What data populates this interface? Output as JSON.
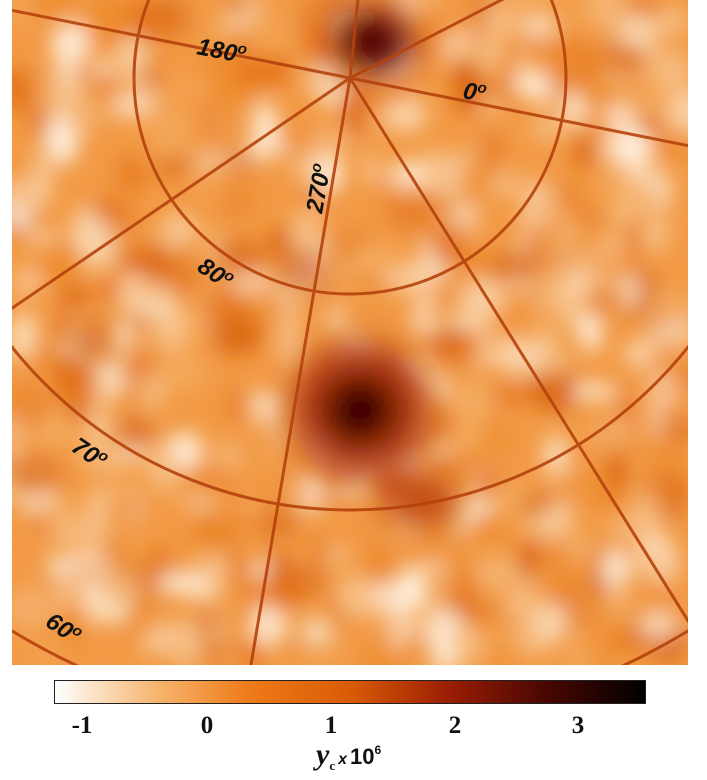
{
  "map": {
    "longitude_labels": [
      "180o",
      "0o",
      "270o"
    ],
    "latitude_labels": [
      "80o",
      "70o",
      "60o"
    ]
  },
  "colorbar": {
    "ticks": [
      "-1",
      "0",
      "1",
      "2",
      "3"
    ],
    "label_symbol": "y",
    "label_subscript": "c",
    "label_times": "x",
    "label_base": "10",
    "label_exponent": "6",
    "colors": [
      "#ffffff",
      "#f6b670",
      "#ee7a18",
      "#d95c05",
      "#9a1d04",
      "#4a0702",
      "#000000"
    ]
  }
}
